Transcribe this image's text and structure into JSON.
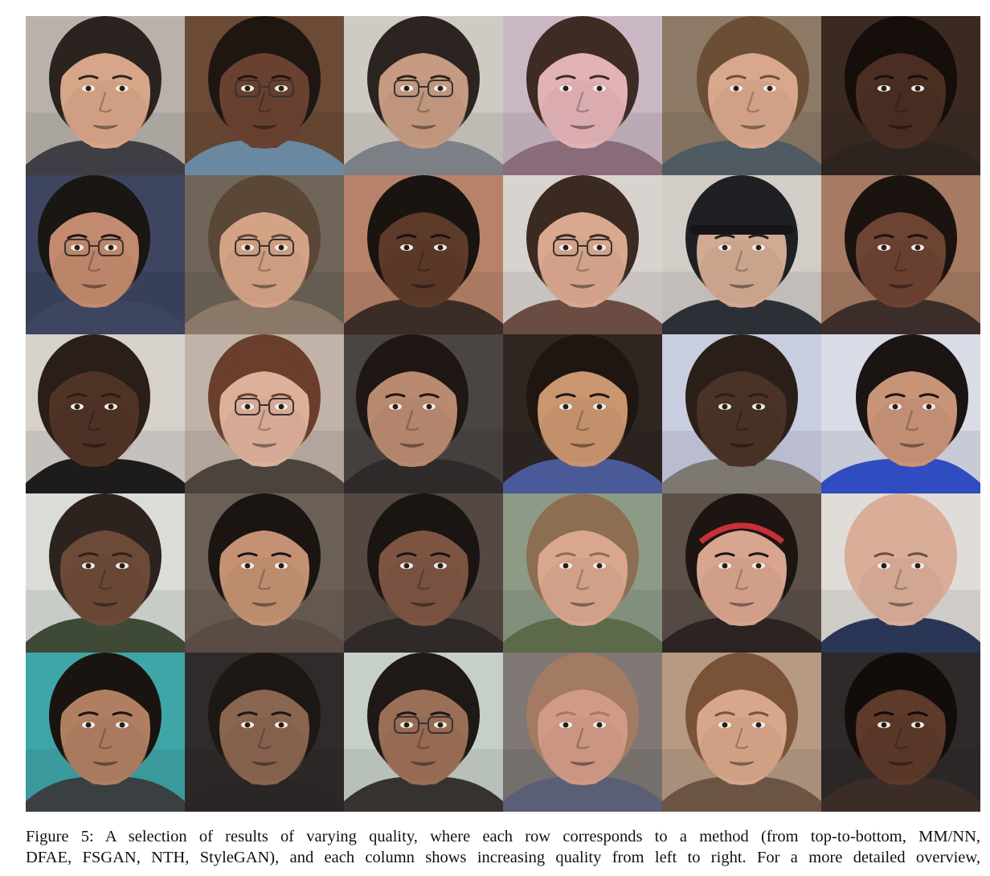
{
  "caption": {
    "line1": "Figure 5: A selection of results of varying quality, where each row corresponds to a method (from top-to-bottom, MM/NN,",
    "line2": "DFAE, FSGAN, NTH, StyleGAN), and each column shows increasing quality from left to right. For a more detailed overview,"
  },
  "tiles": [
    {
      "bg": "#b9b2ac",
      "skin": "#d7a588",
      "hair": "#2a2320",
      "shirt": "#3e3e44",
      "glasses": false,
      "cap": false,
      "headband": false,
      "turn": 0
    },
    {
      "bg": "#6b4a36",
      "skin": "#6a4130",
      "hair": "#1f1612",
      "shirt": "#6a88a0",
      "glasses": true,
      "cap": false,
      "headband": false,
      "turn": 0
    },
    {
      "bg": "#cfcac3",
      "skin": "#c79a82",
      "hair": "#2c2420",
      "shirt": "#7d7f86",
      "glasses": true,
      "cap": false,
      "headband": false,
      "turn": 0
    },
    {
      "bg": "#c9b8c4",
      "skin": "#e3b2b6",
      "hair": "#3d2b24",
      "shirt": "#8a6b7a",
      "glasses": false,
      "cap": false,
      "headband": false,
      "turn": 0
    },
    {
      "bg": "#8c7a66",
      "skin": "#d8a78c",
      "hair": "#6b4e36",
      "shirt": "#4f5a62",
      "glasses": false,
      "cap": false,
      "headband": false,
      "turn": 1
    },
    {
      "bg": "#3b2a22",
      "skin": "#4a2e22",
      "hair": "#150e0b",
      "shirt": "#2d2420",
      "glasses": false,
      "cap": false,
      "headband": false,
      "turn": 0
    },
    {
      "bg": "#3d4560",
      "skin": "#c28a6e",
      "hair": "#1a1614",
      "shirt": "#3d4560",
      "glasses": true,
      "cap": false,
      "headband": false,
      "turn": -1
    },
    {
      "bg": "#6f6558",
      "skin": "#d4a386",
      "hair": "#5a4736",
      "shirt": "#8a7868",
      "glasses": true,
      "cap": false,
      "headband": false,
      "turn": 0
    },
    {
      "bg": "#b8826a",
      "skin": "#5c3b2a",
      "hair": "#1a1410",
      "shirt": "#3a2c26",
      "glasses": false,
      "cap": false,
      "headband": false,
      "turn": 0
    },
    {
      "bg": "#d9d3cf",
      "skin": "#d9a88e",
      "hair": "#3a2a22",
      "shirt": "#6a4c42",
      "glasses": true,
      "cap": false,
      "headband": false,
      "turn": 0
    },
    {
      "bg": "#d3cdc8",
      "skin": "#d2a993",
      "hair": "#1f2024",
      "shirt": "#2d2f36",
      "glasses": false,
      "cap": true,
      "headband": false,
      "turn": 0
    },
    {
      "bg": "#a77a62",
      "skin": "#6d4332",
      "hair": "#1b1310",
      "shirt": "#3b2e2a",
      "glasses": false,
      "cap": false,
      "headband": false,
      "turn": 0
    },
    {
      "bg": "#d7d1cc",
      "skin": "#4f3426",
      "hair": "#2a1e18",
      "shirt": "#1e1b1c",
      "glasses": false,
      "cap": false,
      "headband": false,
      "turn": -1
    },
    {
      "bg": "#c1b3a8",
      "skin": "#ddb09a",
      "hair": "#6a3e2c",
      "shirt": "#4d433d",
      "glasses": true,
      "cap": false,
      "headband": false,
      "turn": 0
    },
    {
      "bg": "#4b4542",
      "skin": "#b98a70",
      "hair": "#1e1714",
      "shirt": "#2f2a2a",
      "glasses": false,
      "cap": false,
      "headband": false,
      "turn": -1
    },
    {
      "bg": "#2f2622",
      "skin": "#c9966f",
      "hair": "#1f1611",
      "shirt": "#4a5a98",
      "glasses": false,
      "cap": false,
      "headband": false,
      "turn": 0
    },
    {
      "bg": "#c9cde0",
      "skin": "#4a3226",
      "hair": "#2a1f18",
      "shirt": "#7e7872",
      "glasses": false,
      "cap": false,
      "headband": false,
      "turn": 0
    },
    {
      "bg": "#d9dbe6",
      "skin": "#c89478",
      "hair": "#1a1512",
      "shirt": "#2f4cc0",
      "glasses": false,
      "cap": false,
      "headband": false,
      "turn": 1
    },
    {
      "bg": "#d9dcd7",
      "skin": "#6c4a38",
      "hair": "#2c231e",
      "shirt": "#3e4a36",
      "glasses": false,
      "cap": false,
      "headband": false,
      "turn": 0
    },
    {
      "bg": "#6b6055",
      "skin": "#c49174",
      "hair": "#1b1512",
      "shirt": "#584c44",
      "glasses": false,
      "cap": false,
      "headband": false,
      "turn": 0
    },
    {
      "bg": "#554842",
      "skin": "#7d5442",
      "hair": "#1a1412",
      "shirt": "#2f2a28",
      "glasses": false,
      "cap": false,
      "headband": false,
      "turn": 0
    },
    {
      "bg": "#8c9a86",
      "skin": "#d8a78e",
      "hair": "#8c6e52",
      "shirt": "#5c6a4a",
      "glasses": false,
      "cap": false,
      "headband": false,
      "turn": 0
    },
    {
      "bg": "#5c5048",
      "skin": "#d9a58e",
      "hair": "#1c1512",
      "shirt": "#2b2422",
      "glasses": false,
      "cap": false,
      "headband": true,
      "turn": 0
    },
    {
      "bg": "#e0dcd8",
      "skin": "#d9ad98",
      "hair": "#d9ad98",
      "shirt": "#2a3655",
      "glasses": false,
      "cap": false,
      "headband": false,
      "turn": 0
    },
    {
      "bg": "#3fa6a8",
      "skin": "#b07f62",
      "hair": "#1a1410",
      "shirt": "#3a3f42",
      "glasses": false,
      "cap": false,
      "headband": false,
      "turn": 0
    },
    {
      "bg": "#2e2b2a",
      "skin": "#8a6550",
      "hair": "#1e1814",
      "shirt": "#2a2625",
      "glasses": false,
      "cap": false,
      "headband": false,
      "turn": 0
    },
    {
      "bg": "#c6d0c9",
      "skin": "#9b6e56",
      "hair": "#1e1916",
      "shirt": "#353230",
      "glasses": true,
      "cap": false,
      "headband": false,
      "turn": 0
    },
    {
      "bg": "#7f7874",
      "skin": "#d19a86",
      "hair": "#a37a62",
      "shirt": "#5a5f75",
      "glasses": false,
      "cap": false,
      "headband": false,
      "turn": 0
    },
    {
      "bg": "#b79a84",
      "skin": "#d8a68a",
      "hair": "#7a5238",
      "shirt": "#6b5444",
      "glasses": false,
      "cap": false,
      "headband": false,
      "turn": 0
    },
    {
      "bg": "#2f2a2a",
      "skin": "#5d3a2a",
      "hair": "#120d0b",
      "shirt": "#3b2c28",
      "glasses": false,
      "cap": false,
      "headband": false,
      "turn": 0
    }
  ]
}
